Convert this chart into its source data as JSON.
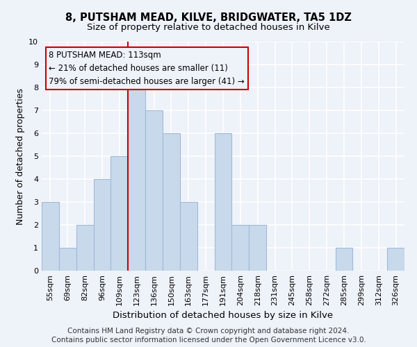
{
  "title": "8, PUTSHAM MEAD, KILVE, BRIDGWATER, TA5 1DZ",
  "subtitle": "Size of property relative to detached houses in Kilve",
  "xlabel": "Distribution of detached houses by size in Kilve",
  "ylabel": "Number of detached properties",
  "bin_labels": [
    "55sqm",
    "69sqm",
    "82sqm",
    "96sqm",
    "109sqm",
    "123sqm",
    "136sqm",
    "150sqm",
    "163sqm",
    "177sqm",
    "191sqm",
    "204sqm",
    "218sqm",
    "231sqm",
    "245sqm",
    "258sqm",
    "272sqm",
    "285sqm",
    "299sqm",
    "312sqm",
    "326sqm"
  ],
  "bar_heights": [
    3,
    1,
    2,
    4,
    5,
    8,
    7,
    6,
    3,
    0,
    6,
    2,
    2,
    0,
    0,
    0,
    0,
    1,
    0,
    0,
    1
  ],
  "bar_color": "#c9d9ec",
  "bar_edgecolor": "#a0b8d8",
  "reference_line_x": 4.5,
  "annotation_title": "8 PUTSHAM MEAD: 113sqm",
  "annotation_line1": "← 21% of detached houses are smaller (11)",
  "annotation_line2": "79% of semi-detached houses are larger (41) →",
  "annotation_box_edgecolor": "#cc0000",
  "ylim": [
    0,
    10
  ],
  "yticks": [
    0,
    1,
    2,
    3,
    4,
    5,
    6,
    7,
    8,
    9,
    10
  ],
  "footer_line1": "Contains HM Land Registry data © Crown copyright and database right 2024.",
  "footer_line2": "Contains public sector information licensed under the Open Government Licence v3.0.",
  "bg_color": "#eef2f9",
  "grid_color": "#ffffff",
  "title_fontsize": 10.5,
  "subtitle_fontsize": 9.5,
  "xlabel_fontsize": 9.5,
  "ylabel_fontsize": 9,
  "tick_fontsize": 8,
  "annotation_fontsize": 8.5,
  "footer_fontsize": 7.5
}
